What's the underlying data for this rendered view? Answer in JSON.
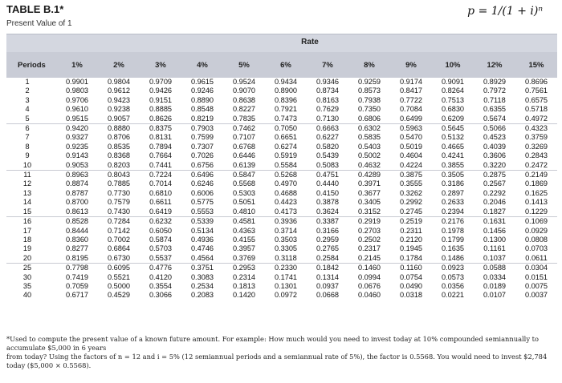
{
  "header": {
    "title": "TABLE B.1*",
    "subtitle": "Present Value of 1",
    "formula": "p = 1/(1 + i)ⁿ"
  },
  "table": {
    "rate_label": "Rate",
    "periods_label": "Periods",
    "columns": [
      "1%",
      "2%",
      "3%",
      "4%",
      "5%",
      "6%",
      "7%",
      "8%",
      "9%",
      "10%",
      "12%",
      "15%"
    ],
    "rows": [
      {
        "period": "1",
        "values": [
          "0.9901",
          "0.9804",
          "0.9709",
          "0.9615",
          "0.9524",
          "0.9434",
          "0.9346",
          "0.9259",
          "0.9174",
          "0.9091",
          "0.8929",
          "0.8696"
        ]
      },
      {
        "period": "2",
        "values": [
          "0.9803",
          "0.9612",
          "0.9426",
          "0.9246",
          "0.9070",
          "0.8900",
          "0.8734",
          "0.8573",
          "0.8417",
          "0.8264",
          "0.7972",
          "0.7561"
        ]
      },
      {
        "period": "3",
        "values": [
          "0.9706",
          "0.9423",
          "0.9151",
          "0.8890",
          "0.8638",
          "0.8396",
          "0.8163",
          "0.7938",
          "0.7722",
          "0.7513",
          "0.7118",
          "0.6575"
        ]
      },
      {
        "period": "4",
        "values": [
          "0.9610",
          "0.9238",
          "0.8885",
          "0.8548",
          "0.8227",
          "0.7921",
          "0.7629",
          "0.7350",
          "0.7084",
          "0.6830",
          "0.6355",
          "0.5718"
        ]
      },
      {
        "period": "5",
        "values": [
          "0.9515",
          "0.9057",
          "0.8626",
          "0.8219",
          "0.7835",
          "0.7473",
          "0.7130",
          "0.6806",
          "0.6499",
          "0.6209",
          "0.5674",
          "0.4972"
        ]
      },
      {
        "period": "6",
        "values": [
          "0.9420",
          "0.8880",
          "0.8375",
          "0.7903",
          "0.7462",
          "0.7050",
          "0.6663",
          "0.6302",
          "0.5963",
          "0.5645",
          "0.5066",
          "0.4323"
        ]
      },
      {
        "period": "7",
        "values": [
          "0.9327",
          "0.8706",
          "0.8131",
          "0.7599",
          "0.7107",
          "0.6651",
          "0.6227",
          "0.5835",
          "0.5470",
          "0.5132",
          "0.4523",
          "0.3759"
        ]
      },
      {
        "period": "8",
        "values": [
          "0.9235",
          "0.8535",
          "0.7894",
          "0.7307",
          "0.6768",
          "0.6274",
          "0.5820",
          "0.5403",
          "0.5019",
          "0.4665",
          "0.4039",
          "0.3269"
        ]
      },
      {
        "period": "9",
        "values": [
          "0.9143",
          "0.8368",
          "0.7664",
          "0.7026",
          "0.6446",
          "0.5919",
          "0.5439",
          "0.5002",
          "0.4604",
          "0.4241",
          "0.3606",
          "0.2843"
        ]
      },
      {
        "period": "10",
        "values": [
          "0.9053",
          "0.8203",
          "0.7441",
          "0.6756",
          "0.6139",
          "0.5584",
          "0.5083",
          "0.4632",
          "0.4224",
          "0.3855",
          "0.3220",
          "0.2472"
        ]
      },
      {
        "period": "11",
        "values": [
          "0.8963",
          "0.8043",
          "0.7224",
          "0.6496",
          "0.5847",
          "0.5268",
          "0.4751",
          "0.4289",
          "0.3875",
          "0.3505",
          "0.2875",
          "0.2149"
        ]
      },
      {
        "period": "12",
        "values": [
          "0.8874",
          "0.7885",
          "0.7014",
          "0.6246",
          "0.5568",
          "0.4970",
          "0.4440",
          "0.3971",
          "0.3555",
          "0.3186",
          "0.2567",
          "0.1869"
        ]
      },
      {
        "period": "13",
        "values": [
          "0.8787",
          "0.7730",
          "0.6810",
          "0.6006",
          "0.5303",
          "0.4688",
          "0.4150",
          "0.3677",
          "0.3262",
          "0.2897",
          "0.2292",
          "0.1625"
        ]
      },
      {
        "period": "14",
        "values": [
          "0.8700",
          "0.7579",
          "0.6611",
          "0.5775",
          "0.5051",
          "0.4423",
          "0.3878",
          "0.3405",
          "0.2992",
          "0.2633",
          "0.2046",
          "0.1413"
        ]
      },
      {
        "period": "15",
        "values": [
          "0.8613",
          "0.7430",
          "0.6419",
          "0.5553",
          "0.4810",
          "0.4173",
          "0.3624",
          "0.3152",
          "0.2745",
          "0.2394",
          "0.1827",
          "0.1229"
        ]
      },
      {
        "period": "16",
        "values": [
          "0.8528",
          "0.7284",
          "0.6232",
          "0.5339",
          "0.4581",
          "0.3936",
          "0.3387",
          "0.2919",
          "0.2519",
          "0.2176",
          "0.1631",
          "0.1069"
        ]
      },
      {
        "period": "17",
        "values": [
          "0.8444",
          "0.7142",
          "0.6050",
          "0.5134",
          "0.4363",
          "0.3714",
          "0.3166",
          "0.2703",
          "0.2311",
          "0.1978",
          "0.1456",
          "0.0929"
        ]
      },
      {
        "period": "18",
        "values": [
          "0.8360",
          "0.7002",
          "0.5874",
          "0.4936",
          "0.4155",
          "0.3503",
          "0.2959",
          "0.2502",
          "0.2120",
          "0.1799",
          "0.1300",
          "0.0808"
        ]
      },
      {
        "period": "19",
        "values": [
          "0.8277",
          "0.6864",
          "0.5703",
          "0.4746",
          "0.3957",
          "0.3305",
          "0.2765",
          "0.2317",
          "0.1945",
          "0.1635",
          "0.1161",
          "0.0703"
        ]
      },
      {
        "period": "20",
        "values": [
          "0.8195",
          "0.6730",
          "0.5537",
          "0.4564",
          "0.3769",
          "0.3118",
          "0.2584",
          "0.2145",
          "0.1784",
          "0.1486",
          "0.1037",
          "0.0611"
        ]
      },
      {
        "period": "25",
        "values": [
          "0.7798",
          "0.6095",
          "0.4776",
          "0.3751",
          "0.2953",
          "0.2330",
          "0.1842",
          "0.1460",
          "0.1160",
          "0.0923",
          "0.0588",
          "0.0304"
        ]
      },
      {
        "period": "30",
        "values": [
          "0.7419",
          "0.5521",
          "0.4120",
          "0.3083",
          "0.2314",
          "0.1741",
          "0.1314",
          "0.0994",
          "0.0754",
          "0.0573",
          "0.0334",
          "0.0151"
        ]
      },
      {
        "period": "35",
        "values": [
          "0.7059",
          "0.5000",
          "0.3554",
          "0.2534",
          "0.1813",
          "0.1301",
          "0.0937",
          "0.0676",
          "0.0490",
          "0.0356",
          "0.0189",
          "0.0075"
        ]
      },
      {
        "period": "40",
        "values": [
          "0.6717",
          "0.4529",
          "0.3066",
          "0.2083",
          "0.1420",
          "0.0972",
          "0.0668",
          "0.0460",
          "0.0318",
          "0.0221",
          "0.0107",
          "0.0037"
        ]
      }
    ]
  },
  "footnote": {
    "line1": "*Used to compute the present value of a known future amount. For example: How much would you need to invest today at 10% compounded semiannually to accumulate $5,000 in 6 years",
    "line2": "from today? Using the factors of n = 12 and i = 5% (12 semiannual periods and a semiannual rate of 5%), the factor is 0.5568. You would need to invest $2,784 today ($5,000 × 0.5568)."
  },
  "colors": {
    "rate_band": "#d4d7e0",
    "header_band": "#c9ccd6"
  }
}
